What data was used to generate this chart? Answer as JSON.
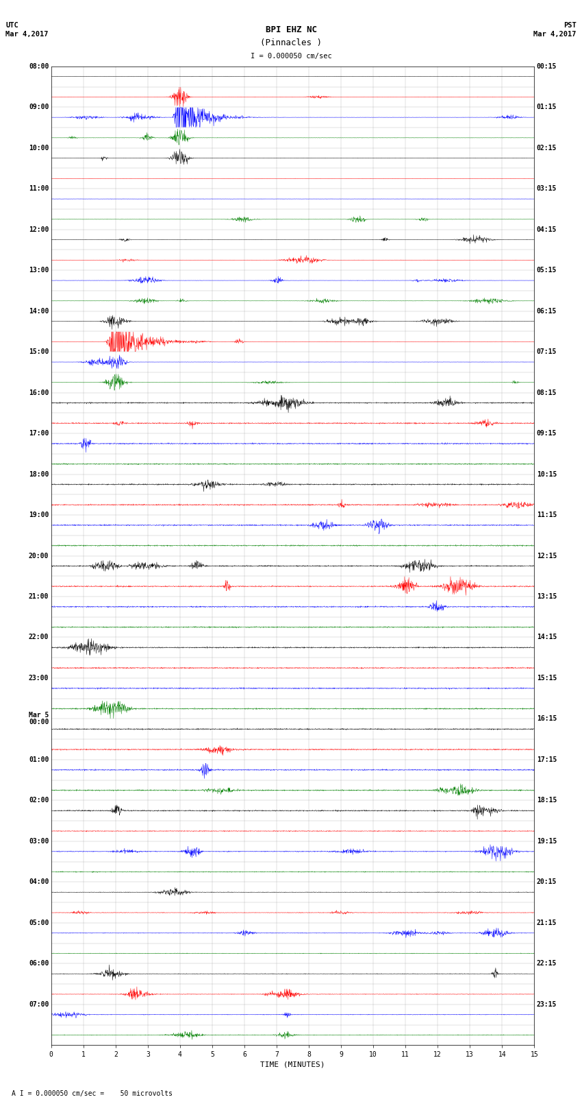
{
  "title_line1": "BPI EHZ NC",
  "title_line2": "(Pinnacles )",
  "scale_label": "I = 0.000050 cm/sec",
  "footer_label": "A I = 0.000050 cm/sec =    50 microvolts",
  "xlabel": "TIME (MINUTES)",
  "left_header_line1": "UTC",
  "left_header_line2": "Mar 4,2017",
  "right_header_line1": "PST",
  "right_header_line2": "Mar 4,2017",
  "left_times": [
    "08:00",
    "09:00",
    "10:00",
    "11:00",
    "12:00",
    "13:00",
    "14:00",
    "15:00",
    "16:00",
    "17:00",
    "18:00",
    "19:00",
    "20:00",
    "21:00",
    "22:00",
    "23:00",
    "Mar 5\n00:00",
    "01:00",
    "02:00",
    "03:00",
    "04:00",
    "05:00",
    "06:00",
    "07:00"
  ],
  "right_times": [
    "00:15",
    "01:15",
    "02:15",
    "03:15",
    "04:15",
    "05:15",
    "06:15",
    "07:15",
    "08:15",
    "09:15",
    "10:15",
    "11:15",
    "12:15",
    "13:15",
    "14:15",
    "15:15",
    "16:15",
    "17:15",
    "18:15",
    "19:15",
    "20:15",
    "21:15",
    "22:15",
    "23:15"
  ],
  "num_rows": 48,
  "colors_cycle": [
    "black",
    "red",
    "blue",
    "green"
  ],
  "bg_color": "#ffffff",
  "grid_color": "#999999",
  "label_fontsize": 7,
  "title_fontsize": 9,
  "xticks": [
    0,
    1,
    2,
    3,
    4,
    5,
    6,
    7,
    8,
    9,
    10,
    11,
    12,
    13,
    14,
    15
  ],
  "noise_seed": 12345
}
